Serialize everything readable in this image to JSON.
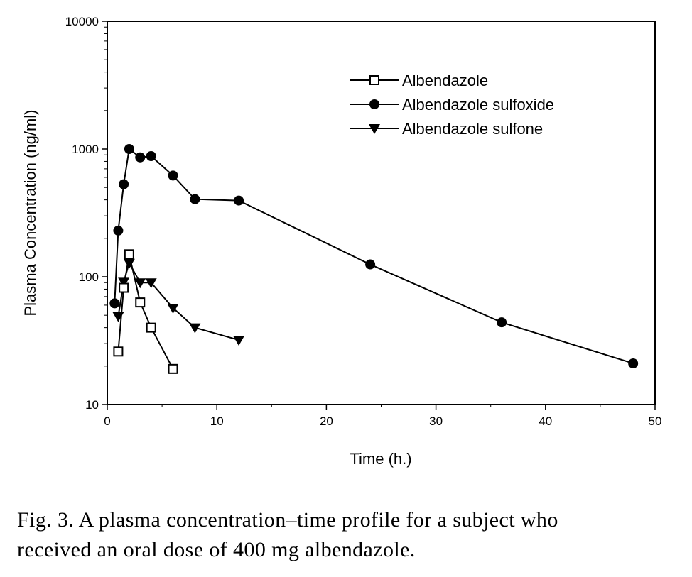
{
  "chart_data": {
    "type": "line",
    "title": "",
    "xlabel": "Time (h.)",
    "ylabel": "Plasma Concentration (ng/ml)",
    "xlim": [
      0,
      50
    ],
    "ylim": [
      10,
      10000
    ],
    "yscale": "log",
    "grid": false,
    "legend_position": "top-right",
    "x_ticks": [
      "0",
      "10",
      "20",
      "30",
      "40",
      "50"
    ],
    "y_ticks": [
      "10",
      "100",
      "1000",
      "10000"
    ],
    "series": [
      {
        "name": "Albendazole",
        "marker": "open-square",
        "color": "#000000",
        "x": [
          1,
          1.5,
          2,
          3,
          4,
          6
        ],
        "y": [
          26,
          82,
          150,
          63,
          40,
          19
        ]
      },
      {
        "name": "Albendazole sulfoxide",
        "marker": "filled-circle",
        "color": "#000000",
        "x": [
          0.67,
          1,
          1.5,
          2,
          3,
          4,
          6,
          8,
          12,
          24,
          36,
          48
        ],
        "y": [
          62,
          230,
          530,
          1000,
          860,
          880,
          620,
          405,
          395,
          125,
          44,
          21
        ]
      },
      {
        "name": "Albendazole sulfone",
        "marker": "filled-triangle-down",
        "color": "#000000",
        "x": [
          1,
          1.5,
          2,
          3,
          4,
          6,
          8,
          12
        ],
        "y": [
          49,
          91,
          128,
          90,
          90,
          57,
          40,
          32
        ]
      }
    ]
  },
  "caption": {
    "line1": "Fig. 3. A plasma concentration–time profile for a subject who",
    "line2": "received an oral dose of 400 mg albendazole."
  }
}
